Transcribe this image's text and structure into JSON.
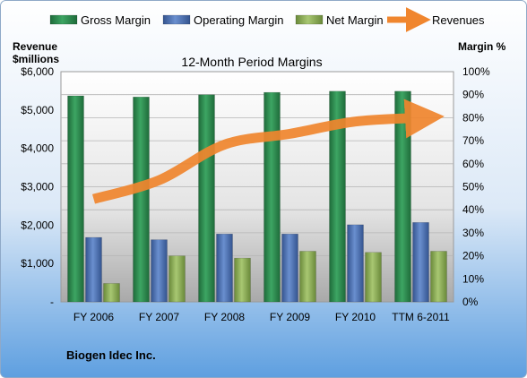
{
  "chart_data": {
    "type": "bar",
    "title": "12-Month Period Margins",
    "company": "Biogen Idec Inc.",
    "categories": [
      "FY 2006",
      "FY 2007",
      "FY 2008",
      "FY 2009",
      "FY 2010",
      "TTM 6-2011"
    ],
    "left_axis": {
      "label_line1": "Revenue",
      "label_line2": "$millions",
      "ylim": [
        0,
        6000
      ],
      "ticks": [
        "-",
        "$1,000",
        "$2,000",
        "$3,000",
        "$4,000",
        "$5,000",
        "$6,000"
      ]
    },
    "right_axis": {
      "label": "Margin %",
      "ylim": [
        0,
        100
      ],
      "ticks": [
        "0%",
        "10%",
        "20%",
        "30%",
        "40%",
        "50%",
        "60%",
        "70%",
        "80%",
        "90%",
        "100%"
      ]
    },
    "series": [
      {
        "name": "Gross Margin",
        "axis": "right",
        "type": "bar",
        "color": "#2E8B4F",
        "values": [
          89.5,
          89,
          90,
          91,
          91.5,
          91.5
        ]
      },
      {
        "name": "Operating Margin",
        "axis": "right",
        "type": "bar",
        "color": "#4F74B8",
        "values": [
          28,
          27,
          29.5,
          29.5,
          33.5,
          34.5
        ]
      },
      {
        "name": "Net Margin",
        "axis": "right",
        "type": "bar",
        "color": "#8DB05A",
        "values": [
          8,
          20,
          19,
          22,
          21.5,
          22
        ]
      },
      {
        "name": "Revenues",
        "axis": "left",
        "type": "line",
        "color": "#F0862E",
        "values": [
          2680,
          3170,
          4100,
          4380,
          4700,
          4800
        ]
      }
    ],
    "grid": true,
    "legend_position": "top"
  }
}
